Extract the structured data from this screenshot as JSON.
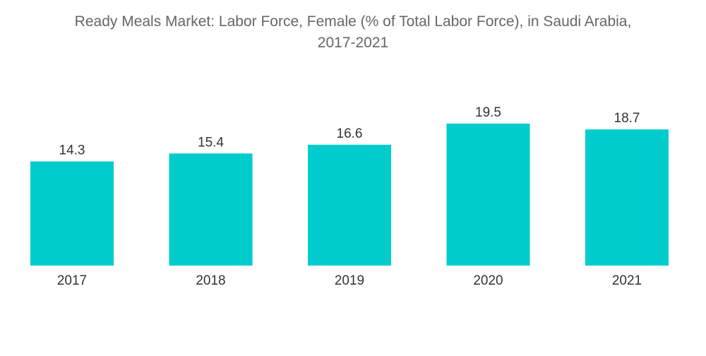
{
  "chart_data": {
    "type": "bar",
    "title": "Ready Meals Market: Labor Force, Female (% of Total Labor Force), in Saudi Arabia,",
    "title_line2": "2017-2021",
    "categories": [
      "2017",
      "2018",
      "2019",
      "2020",
      "2021"
    ],
    "values": [
      14.3,
      15.4,
      16.6,
      19.5,
      18.7
    ],
    "value_labels": [
      "14.3",
      "15.4",
      "16.6",
      "19.5",
      "18.7"
    ],
    "xlabel": "",
    "ylabel": "",
    "ylim": [
      0,
      19.5
    ],
    "grid": false,
    "bar_color": "#00cccd"
  }
}
